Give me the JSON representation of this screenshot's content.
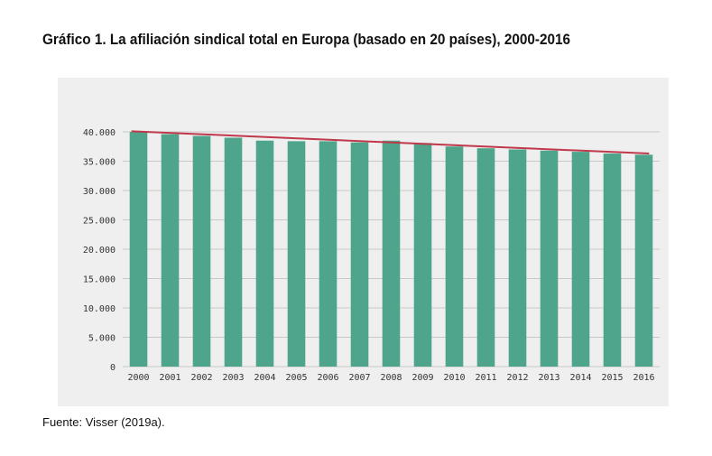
{
  "title": "Gráfico 1. La afiliación sindical total en Europa (basado en 20 países), 2000-2016",
  "source": "Fuente: Visser (2019a).",
  "colors": {
    "bar": "#4fa58b",
    "trendline": "#c0394b",
    "panel": "#efefef",
    "grid": "#c8c8c8",
    "axis_text": "#333333"
  },
  "chart_data": {
    "type": "bar",
    "title": "",
    "xlabel": "",
    "ylabel": "",
    "ylim": [
      0,
      40000
    ],
    "grid": true,
    "legend": "none",
    "yticks": [
      0,
      5000,
      10000,
      15000,
      20000,
      25000,
      30000,
      35000,
      40000
    ],
    "ytick_labels": [
      "0",
      "5.000",
      "10.000",
      "15.000",
      "20.000",
      "25.000",
      "30.000",
      "35.000",
      "40.000"
    ],
    "categories": [
      "2000",
      "2001",
      "2002",
      "2003",
      "2004",
      "2005",
      "2006",
      "2007",
      "2008",
      "2009",
      "2010",
      "2011",
      "2012",
      "2013",
      "2014",
      "2015",
      "2016"
    ],
    "values": [
      40000,
      39600,
      39300,
      39000,
      38500,
      38400,
      38400,
      38200,
      38500,
      38100,
      37500,
      37200,
      37000,
      36800,
      36600,
      36300,
      36100
    ],
    "trendline": {
      "start": 40100,
      "end": 36300
    }
  }
}
